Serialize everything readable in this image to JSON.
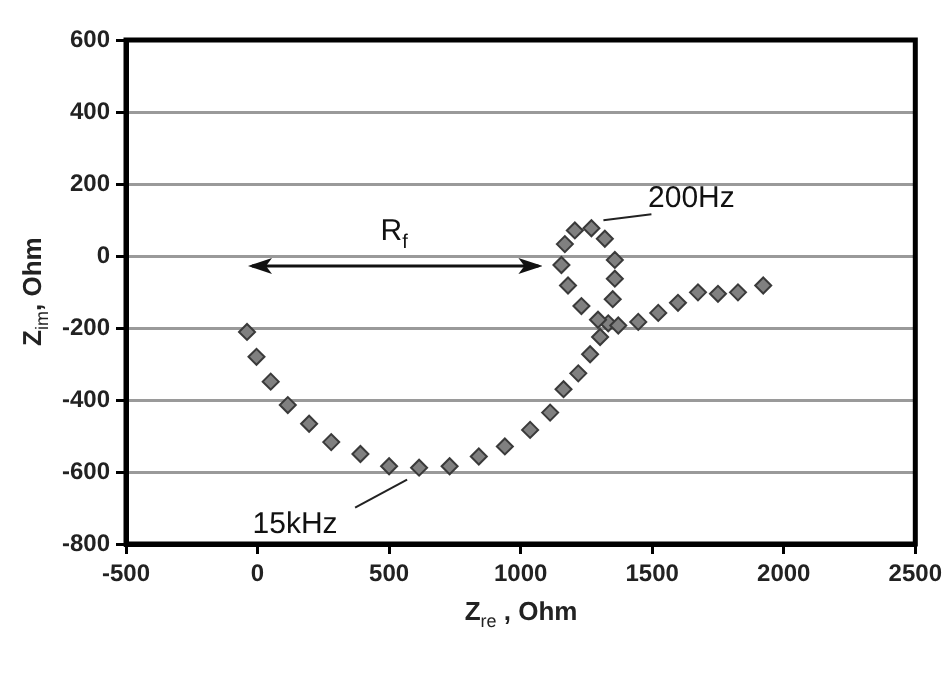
{
  "chart_data": {
    "type": "scatter",
    "xlabel": "Z$_{re}$ , Ohm",
    "ylabel": "Z$_{im}$, Ohm",
    "xlim": [
      -500,
      2500
    ],
    "xticks": [
      -500,
      0,
      500,
      1000,
      1500,
      2000,
      2500
    ],
    "ylim": [
      -800,
      600
    ],
    "yticks": [
      -800,
      -600,
      -400,
      -200,
      0,
      200,
      400,
      600
    ],
    "grid": "y",
    "marker": "diamond",
    "legend": false,
    "series": [
      {
        "color": "#808080",
        "x": [
          -40,
          -4,
          50,
          115,
          196,
          280,
          391,
          500,
          614,
          730,
          841,
          940,
          1036,
          1112,
          1163,
          1219,
          1264,
          1302,
          1333,
          1350,
          1358,
          1358,
          1320,
          1269,
          1206,
          1168,
          1155,
          1180,
          1231,
          1294,
          1371,
          1447,
          1523,
          1598,
          1674,
          1750,
          1826,
          1922
        ],
        "values": [
          -211,
          -280,
          -349,
          -414,
          -466,
          -517,
          -550,
          -584,
          -588,
          -584,
          -557,
          -529,
          -483,
          -435,
          -370,
          -326,
          -273,
          -225,
          -187,
          -120,
          -63,
          -11,
          48,
          77,
          71,
          33,
          -25,
          -82,
          -139,
          -177,
          -193,
          -183,
          -158,
          -130,
          -101,
          -105,
          -101,
          -82
        ]
      }
    ],
    "annotations": [
      {
        "text": "200Hz",
        "x": 1269,
        "y": 77
      },
      {
        "text": "15kHz",
        "x": 614,
        "y": -588
      },
      "R$_{f}$"
    ]
  }
}
